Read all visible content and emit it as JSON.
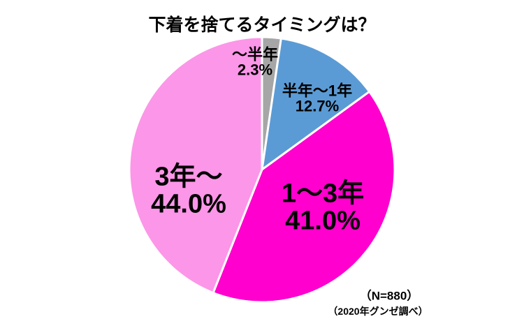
{
  "title": "下着を捨てるタイミングは？",
  "chart_data": {
    "type": "pie",
    "title": "下着を捨てるタイミングは？",
    "direction": "clockwise",
    "start_angle_deg": 0,
    "unit": "%",
    "legend": "none",
    "categories": [
      "～半年",
      "半年～1年",
      "1～3年",
      "3年～"
    ],
    "values": [
      2.3,
      12.7,
      41.0,
      44.0
    ],
    "colors": [
      "#a6a6a6",
      "#5b9bd5",
      "#ff00ce",
      "#fc96e8"
    ],
    "slice_border_color": "#ffffff",
    "labels": [
      {
        "name": "～半年",
        "percent": "2.3%"
      },
      {
        "name": "半年～1年",
        "percent": "12.7%"
      },
      {
        "name": "1～3年",
        "percent": "41.0%"
      },
      {
        "name": "3年～",
        "percent": "44.0%"
      }
    ],
    "sample_size": "（N=880）",
    "source": "（2020年グンゼ調べ）"
  }
}
